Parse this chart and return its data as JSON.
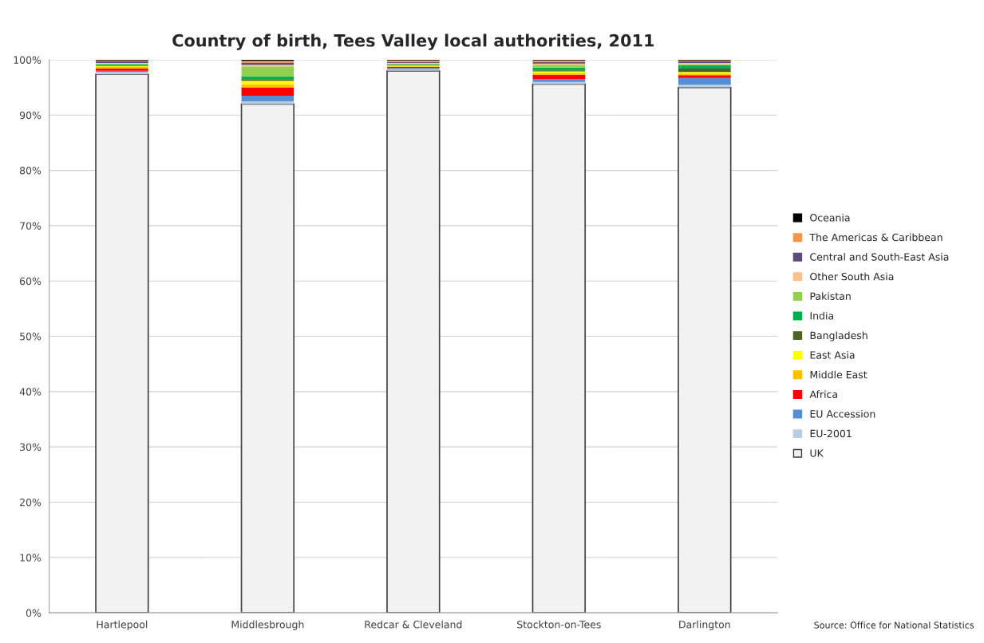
{
  "chart_data": {
    "type": "bar",
    "title": "Country of birth, Tees Valley local authorities, 2011",
    "categories": [
      "Hartlepool",
      "Middlesbrough",
      "Redcar & Cleveland",
      "Stockton-on-Tees",
      "Darlington"
    ],
    "stacked": true,
    "series": [
      {
        "name": "UK",
        "color": "#f2f2f2",
        "values": [
          97.4,
          92.0,
          98.0,
          95.6,
          95.0
        ]
      },
      {
        "name": "EU-2001",
        "color": "#b9cde5",
        "values": [
          0.4,
          0.5,
          0.3,
          0.4,
          0.5
        ]
      },
      {
        "name": "EU Accession",
        "color": "#558ed5",
        "values": [
          0.2,
          1.0,
          0.2,
          0.5,
          1.2
        ]
      },
      {
        "name": "Africa",
        "color": "#ff0000",
        "values": [
          0.4,
          1.5,
          0.2,
          0.8,
          0.5
        ]
      },
      {
        "name": "Middle East",
        "color": "#ffc000",
        "values": [
          0.3,
          0.6,
          0.1,
          0.3,
          0.3
        ]
      },
      {
        "name": "East Asia",
        "color": "#ffff00",
        "values": [
          0.2,
          0.6,
          0.2,
          0.3,
          0.3
        ]
      },
      {
        "name": "Bangladesh",
        "color": "#4f6228",
        "values": [
          0.1,
          0.3,
          0.1,
          0.2,
          0.6
        ]
      },
      {
        "name": "India",
        "color": "#00b050",
        "values": [
          0.2,
          0.5,
          0.1,
          0.5,
          0.6
        ]
      },
      {
        "name": "Pakistan",
        "color": "#92d050",
        "values": [
          0.1,
          1.8,
          0.1,
          0.5,
          0.2
        ]
      },
      {
        "name": "Other South Asia",
        "color": "#fac090",
        "values": [
          0.1,
          0.3,
          0.1,
          0.2,
          0.2
        ]
      },
      {
        "name": "Central and South-East Asia",
        "color": "#604a7b",
        "values": [
          0.3,
          0.4,
          0.2,
          0.3,
          0.3
        ]
      },
      {
        "name": "The Americas & Caribbean",
        "color": "#f79646",
        "values": [
          0.2,
          0.3,
          0.3,
          0.3,
          0.2
        ]
      },
      {
        "name": "Oceania",
        "color": "#000000",
        "values": [
          0.1,
          0.2,
          0.1,
          0.1,
          0.1
        ]
      }
    ],
    "ylim": [
      0,
      100
    ],
    "yticks": [
      {
        "value": 0,
        "label": "0%"
      },
      {
        "value": 10,
        "label": "10%"
      },
      {
        "value": 20,
        "label": "20%"
      },
      {
        "value": 30,
        "label": "30%"
      },
      {
        "value": 40,
        "label": "40%"
      },
      {
        "value": 50,
        "label": "50%"
      },
      {
        "value": 60,
        "label": "60%"
      },
      {
        "value": 70,
        "label": "70%"
      },
      {
        "value": 80,
        "label": "80%"
      },
      {
        "value": 90,
        "label": "90%"
      },
      {
        "value": 100,
        "label": "100%"
      }
    ],
    "grid": "y",
    "legend": "right",
    "annotations": [
      "Source: Office for National Statistics"
    ]
  }
}
